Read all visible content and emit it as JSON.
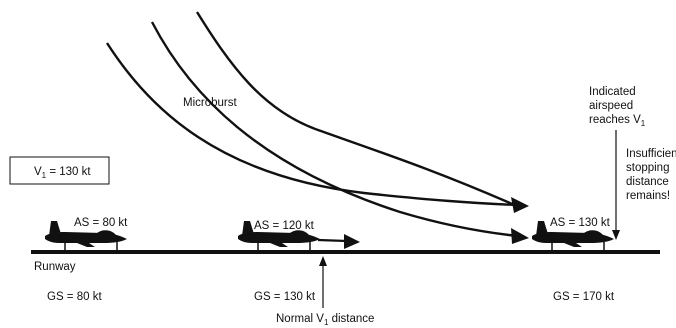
{
  "v1_box": {
    "text": "V",
    "sub": "1",
    "rest": " = 130 kt"
  },
  "microburst_label": "Microburst",
  "runway_label": "Runway",
  "aircraft": [
    {
      "as": "AS = 80 kt",
      "gs": "GS = 80 kt"
    },
    {
      "as": "AS = 120 kt",
      "gs": "GS = 130 kt"
    },
    {
      "as": "AS = 130 kt",
      "gs": "GS = 170 kt"
    }
  ],
  "normal_v1": {
    "text": "Normal V",
    "sub": "1",
    "rest": " distance"
  },
  "indicated": {
    "line1": "Indicated",
    "line2": "airspeed",
    "line3": "reaches V",
    "sub": "1"
  },
  "insufficient": {
    "line1": "Insufficient",
    "line2": "stopping",
    "line3": "distance",
    "line4": "remains!"
  },
  "colors": {
    "ink": "#111111",
    "background": "#ffffff"
  }
}
